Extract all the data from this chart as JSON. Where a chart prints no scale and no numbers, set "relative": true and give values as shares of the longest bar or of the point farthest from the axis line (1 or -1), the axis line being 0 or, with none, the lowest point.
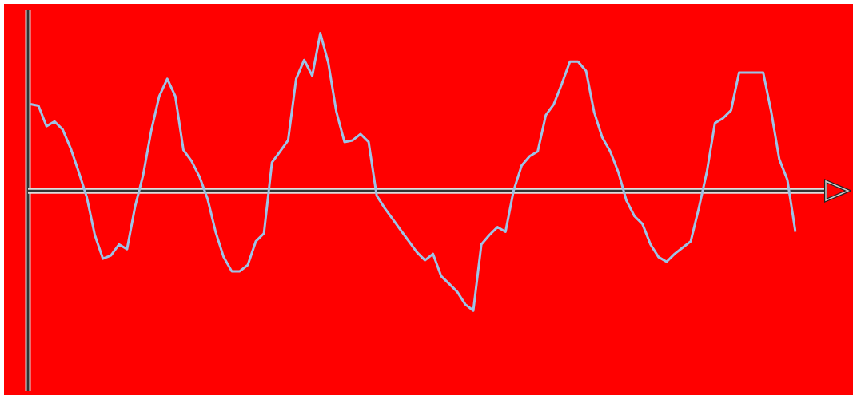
{
  "chart_data": {
    "type": "line",
    "relative": true,
    "color": "#9dc3e6",
    "legend": false,
    "marker": "none",
    "categories": [
      null,
      null,
      null,
      null,
      null,
      null,
      null,
      null,
      null,
      null,
      null,
      null,
      null,
      null,
      null,
      null,
      null,
      null,
      null,
      null,
      null,
      null,
      null,
      null,
      null,
      null,
      null,
      null,
      null,
      null,
      null,
      null,
      null,
      null,
      null,
      null,
      null,
      null,
      null,
      null,
      null,
      null,
      null,
      null,
      null,
      null,
      null,
      null,
      null,
      null,
      null,
      null,
      null,
      null,
      null,
      null,
      null,
      null,
      null,
      null,
      null,
      null,
      null,
      null,
      null,
      null,
      null,
      null,
      null,
      null,
      null,
      null,
      null,
      null,
      null,
      null,
      null,
      null,
      null,
      null,
      null,
      null,
      null,
      null,
      null,
      null,
      null,
      null,
      null,
      null,
      null,
      null,
      null,
      null,
      null,
      null
    ],
    "values": [
      0.55,
      0.54,
      0.41,
      0.44,
      0.39,
      0.27,
      0.12,
      -0.04,
      -0.28,
      -0.43,
      -0.41,
      -0.34,
      -0.37,
      -0.1,
      0.1,
      0.38,
      0.6,
      0.71,
      0.6,
      0.26,
      0.19,
      0.09,
      -0.05,
      -0.26,
      -0.42,
      -0.51,
      -0.51,
      -0.47,
      -0.32,
      -0.27,
      0.18,
      0.25,
      0.32,
      0.71,
      0.83,
      0.73,
      1,
      0.81,
      0.5,
      0.31,
      0.32,
      0.36,
      0.31,
      -0.03,
      -0.11,
      -0.18,
      -0.25,
      -0.32,
      -0.39,
      -0.44,
      -0.4,
      -0.54,
      -0.59,
      -0.64,
      -0.72,
      -0.76,
      -0.34,
      -0.28,
      -0.23,
      -0.26,
      0,
      0.16,
      0.22,
      0.25,
      0.48,
      0.55,
      0.68,
      0.82,
      0.82,
      0.76,
      0.5,
      0.34,
      0.25,
      0.12,
      -0.06,
      -0.16,
      -0.21,
      -0.34,
      -0.42,
      -0.45,
      -0.4,
      -0.36,
      -0.32,
      -0.11,
      0.12,
      0.43,
      0.46,
      0.51,
      0.75,
      0.75,
      0.75,
      0.75,
      0.5,
      0.2,
      0.07,
      -0.26
    ]
  }
}
